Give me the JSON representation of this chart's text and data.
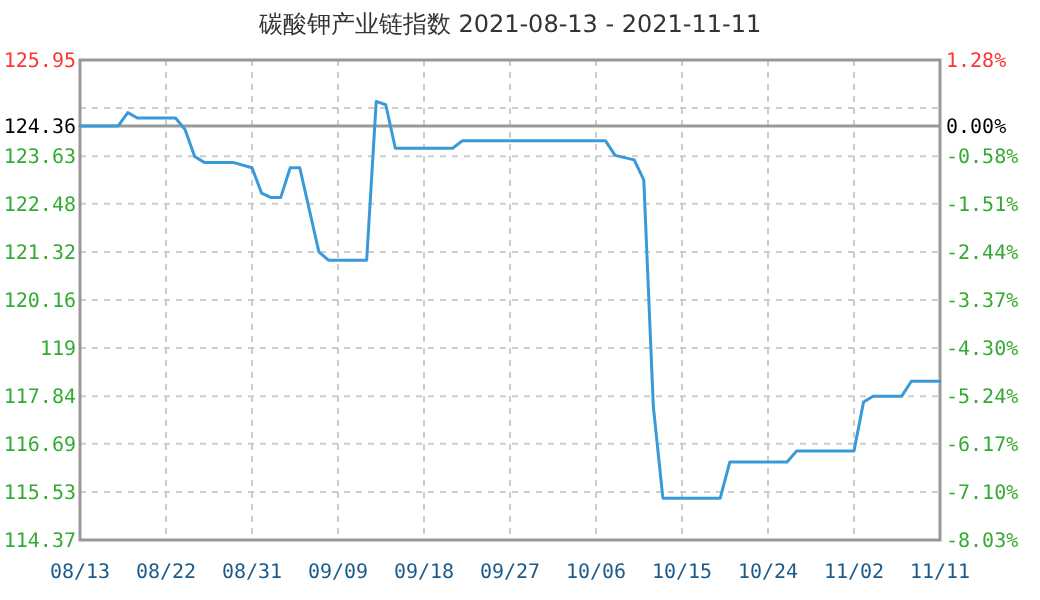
{
  "chart_data": {
    "type": "line",
    "title": "碳酸钾产业链指数 2021-08-13 - 2021-11-11",
    "series": [
      {
        "color": "#3a9ad9",
        "x": [
          "2021-08-13",
          "2021-08-17",
          "2021-08-18",
          "2021-08-19",
          "2021-08-23",
          "2021-08-24",
          "2021-08-25",
          "2021-08-26",
          "2021-08-29",
          "2021-08-31",
          "2021-09-01",
          "2021-09-02",
          "2021-09-03",
          "2021-09-04",
          "2021-09-05",
          "2021-09-07",
          "2021-09-08",
          "2021-09-12",
          "2021-09-13",
          "2021-09-14",
          "2021-09-15",
          "2021-09-21",
          "2021-09-22",
          "2021-10-07",
          "2021-10-08",
          "2021-10-10",
          "2021-10-11",
          "2021-10-12",
          "2021-10-13",
          "2021-10-19",
          "2021-10-20",
          "2021-10-26",
          "2021-10-27",
          "2021-11-02",
          "2021-11-03",
          "2021-11-04",
          "2021-11-07",
          "2021-11-08",
          "2021-11-11"
        ],
        "values": [
          124.36,
          124.36,
          124.68,
          124.55,
          124.55,
          124.27,
          123.62,
          123.48,
          123.48,
          123.35,
          122.74,
          122.63,
          122.63,
          123.35,
          123.35,
          121.32,
          121.12,
          121.12,
          124.95,
          124.87,
          123.82,
          123.82,
          124.0,
          124.0,
          123.65,
          123.54,
          123.06,
          117.59,
          115.38,
          115.38,
          116.25,
          116.25,
          116.52,
          116.52,
          117.7,
          117.84,
          117.84,
          118.2,
          118.2
        ]
      }
    ],
    "xlim": [
      "2021-08-13",
      "2021-11-11"
    ],
    "xticks": [
      {
        "value": "2021-08-13",
        "label": "08/13"
      },
      {
        "value": "2021-08-22",
        "label": "08/22"
      },
      {
        "value": "2021-08-31",
        "label": "08/31"
      },
      {
        "value": "2021-09-09",
        "label": "09/09"
      },
      {
        "value": "2021-09-18",
        "label": "09/18"
      },
      {
        "value": "2021-09-27",
        "label": "09/27"
      },
      {
        "value": "2021-10-06",
        "label": "10/06"
      },
      {
        "value": "2021-10-15",
        "label": "10/15"
      },
      {
        "value": "2021-10-24",
        "label": "10/24"
      },
      {
        "value": "2021-11-02",
        "label": "11/02"
      },
      {
        "value": "2021-11-11",
        "label": "11/11"
      }
    ],
    "ylim": [
      114.37,
      125.95
    ],
    "yticks": [
      125.95,
      {
        "value": 124.79,
        "label": null
      },
      124.36,
      123.63,
      122.48,
      121.32,
      120.16,
      119,
      117.84,
      116.69,
      115.53,
      114.37
    ],
    "y2lim": [
      -8.03,
      1.28
    ],
    "y2ticks": [
      {
        "value": 1.28,
        "label": "1.28%"
      },
      {
        "value": 0,
        "label": "0.00%"
      },
      {
        "value": -0.58,
        "label": "-0.58%"
      },
      {
        "value": -1.51,
        "label": "-1.51%"
      },
      {
        "value": -2.44,
        "label": "-2.44%"
      },
      {
        "value": -3.37,
        "label": "-3.37%"
      },
      {
        "value": -4.3,
        "label": "-4.30%"
      },
      {
        "value": -5.24,
        "label": "-5.24%"
      },
      {
        "value": -6.17,
        "label": "-6.17%"
      },
      {
        "value": -7.1,
        "label": "-7.10%"
      },
      {
        "value": -8.03,
        "label": "-8.03%"
      }
    ],
    "ref_lines": [
      {
        "axis": "y",
        "value": 124.36,
        "color": "#999999",
        "line_style": "solid"
      }
    ],
    "grid": true,
    "line_style": "solid",
    "marker": "none"
  }
}
